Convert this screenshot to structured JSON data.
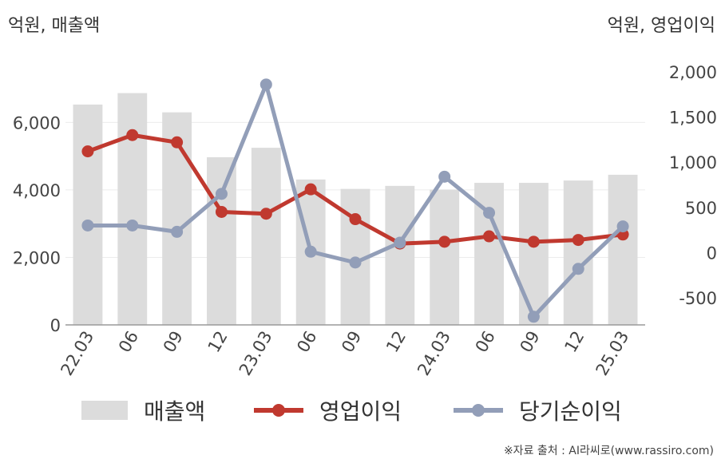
{
  "chart_data": {
    "type": "bar+line",
    "categories": [
      "22.03",
      "06",
      "09",
      "12",
      "23.03",
      "06",
      "09",
      "12",
      "24.03",
      "06",
      "09",
      "12",
      "25.03"
    ],
    "left_axis": {
      "unit_label": "억원, 매출액",
      "range": [
        0,
        7500
      ],
      "ticks": [
        0,
        2000,
        4000,
        6000
      ],
      "tick_labels": [
        "0",
        "2,000",
        "4,000",
        "6,000"
      ]
    },
    "right_axis": {
      "unit_label": "억원, 영업이익",
      "range": [
        -800,
        2000
      ],
      "ticks": [
        -500,
        0,
        500,
        1000,
        1500,
        2000
      ],
      "tick_labels": [
        "-500",
        "0",
        "500",
        "1,000",
        "1,500",
        "2,000"
      ]
    },
    "grid": true,
    "series": [
      {
        "name": "매출액",
        "kind": "bar",
        "axis": "left",
        "color": "#dcdcdc",
        "values": [
          6530,
          6870,
          6300,
          4970,
          5250,
          4310,
          4030,
          4120,
          4010,
          4210,
          4210,
          4280,
          4450
        ]
      },
      {
        "name": "영업이익",
        "kind": "line",
        "axis": "right",
        "color": "#c0392f",
        "values": [
          1120,
          1300,
          1220,
          450,
          430,
          700,
          370,
          100,
          120,
          180,
          120,
          140,
          200
        ]
      },
      {
        "name": "당기순이익",
        "kind": "line",
        "axis": "right",
        "color": "#929eb8",
        "values": [
          300,
          300,
          230,
          650,
          1860,
          10,
          -110,
          110,
          840,
          440,
          -710,
          -180,
          290
        ]
      }
    ],
    "legend_position": "bottom"
  },
  "source": "※자료 출처 : AI라씨로(www.rassiro.com)"
}
